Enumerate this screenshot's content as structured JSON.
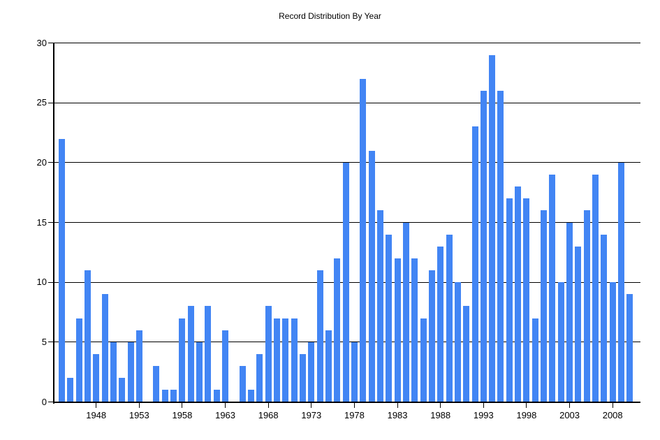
{
  "colors": {
    "bar": "#4285F4",
    "grid": "#000000",
    "axis": "#000000",
    "text": "#000000",
    "background": "#FFFFFF"
  },
  "chart_data": {
    "type": "bar",
    "title": "Record Distribution By Year",
    "xlabel": "",
    "ylabel": "",
    "ylim": [
      0,
      30
    ],
    "y_ticks": [
      0,
      5,
      10,
      15,
      20,
      25,
      30
    ],
    "x_tick_labels": [
      "1948",
      "1953",
      "1958",
      "1963",
      "1968",
      "1973",
      "1978",
      "1983",
      "1988",
      "1993",
      "1998",
      "2003",
      "2008"
    ],
    "grid": "horizontal",
    "legend": "none",
    "categories": [
      1944,
      1945,
      1946,
      1947,
      1948,
      1949,
      1950,
      1951,
      1952,
      1953,
      1954,
      1955,
      1956,
      1957,
      1958,
      1959,
      1960,
      1961,
      1962,
      1963,
      1964,
      1965,
      1966,
      1967,
      1968,
      1969,
      1970,
      1971,
      1972,
      1973,
      1974,
      1975,
      1976,
      1977,
      1978,
      1979,
      1980,
      1981,
      1982,
      1983,
      1984,
      1985,
      1986,
      1987,
      1988,
      1989,
      1990,
      1991,
      1992,
      1993,
      1994,
      1995,
      1996,
      1997,
      1998,
      1999,
      2000,
      2001,
      2002,
      2003,
      2004,
      2005,
      2006,
      2007,
      2008,
      2009,
      2010
    ],
    "values": [
      22,
      2,
      7,
      11,
      4,
      9,
      5,
      2,
      5,
      6,
      0,
      3,
      1,
      1,
      7,
      8,
      5,
      8,
      1,
      6,
      0,
      3,
      1,
      4,
      8,
      7,
      7,
      7,
      4,
      5,
      11,
      6,
      12,
      20,
      5,
      27,
      21,
      16,
      14,
      12,
      15,
      12,
      7,
      11,
      13,
      14,
      10,
      8,
      23,
      26,
      29,
      26,
      17,
      18,
      17,
      7,
      16,
      19,
      10,
      15,
      13,
      16,
      19,
      14,
      10,
      20,
      9
    ]
  }
}
